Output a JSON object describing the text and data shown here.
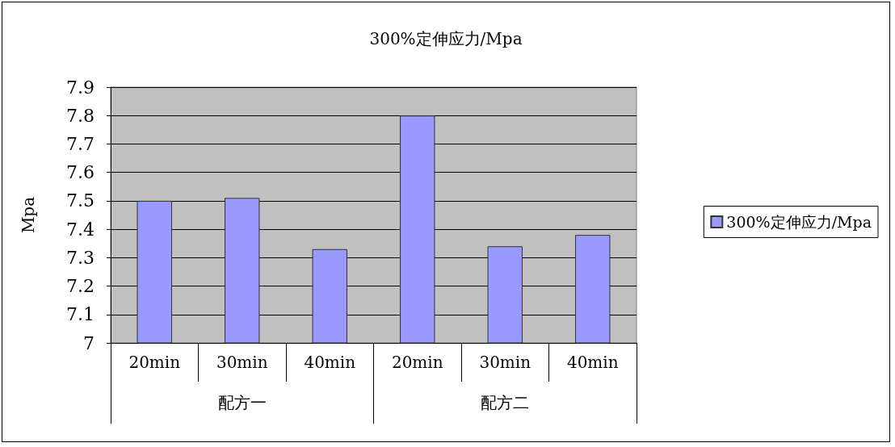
{
  "chart_data": {
    "type": "bar",
    "title": "300%定伸应力/Mpa",
    "ylabel": "Mpa",
    "categories": [
      "20min",
      "30min",
      "40min",
      "20min",
      "30min",
      "40min"
    ],
    "series": [
      {
        "name": "300%定伸应力/Mpa",
        "color": "#9999ff",
        "values": [
          7.5,
          7.51,
          7.33,
          7.8,
          7.34,
          7.38
        ]
      }
    ],
    "annotations": [
      "配方一",
      "配方二"
    ],
    "ylim": [
      7,
      7.9
    ],
    "yticks": [
      7,
      7.1,
      7.2,
      7.3,
      7.4,
      7.5,
      7.6,
      7.7,
      7.8,
      7.9
    ],
    "grid": "y",
    "legend": "right"
  }
}
